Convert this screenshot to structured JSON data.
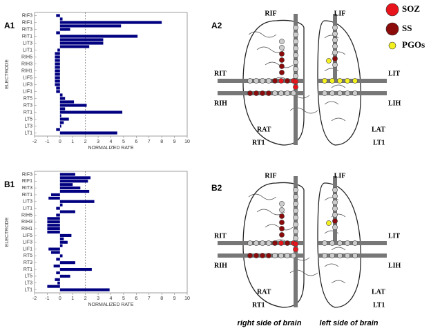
{
  "chart_data": [
    {
      "type": "bar",
      "orientation": "horizontal",
      "panel": "A1",
      "color": "#000080",
      "categories": [
        "RIF3",
        null,
        "RIF1",
        null,
        "RIT3",
        null,
        "RIT1",
        null,
        "LIT3",
        null,
        "LIT1",
        null,
        "RIH5",
        null,
        "RIH3",
        null,
        "RIH1",
        null,
        "LIF5",
        null,
        "LIF3",
        null,
        "LIF1",
        null,
        "RT5",
        null,
        "RT3",
        null,
        "RT1",
        null,
        "LT5",
        null,
        "LT3",
        null,
        "LT1"
      ],
      "values": [
        -0.3,
        0.2,
        8.0,
        4.8,
        0.8,
        -0.3,
        6.1,
        3.4,
        3.4,
        2.3,
        -0.2,
        -0.4,
        -0.4,
        -0.4,
        -0.4,
        -0.4,
        -0.4,
        -0.4,
        -0.4,
        -0.4,
        -0.4,
        -0.3,
        -0.3,
        0.2,
        0.4,
        1.1,
        2.1,
        0.4,
        4.9,
        0.1,
        0.7,
        0.3,
        0.1,
        -0.3,
        4.5
      ],
      "xlim": [
        -2,
        10
      ],
      "xticks": [
        -2,
        -1,
        0,
        1,
        2,
        3,
        4,
        5,
        6,
        7,
        8,
        9,
        10
      ],
      "xlabel": "NORMALIZED RATE",
      "ylabel": "ELECTRODE",
      "reference_x": 2
    },
    {
      "type": "bar",
      "orientation": "horizontal",
      "panel": "B1",
      "color": "#000080",
      "categories": [
        "RIF3",
        null,
        "RIF1",
        null,
        "RIT3",
        null,
        "RIT1",
        null,
        "LIT3",
        null,
        "LIT1",
        null,
        "RIH5",
        null,
        "RIH3",
        null,
        "RIH1",
        null,
        "LIF5",
        null,
        "LIF3",
        null,
        "LIF1",
        null,
        "RT5",
        null,
        "RT3",
        null,
        "RT1",
        null,
        "LT5",
        null,
        "LT3",
        null,
        "LT1"
      ],
      "values": [
        1.2,
        2.4,
        2.2,
        1.0,
        1.6,
        2.3,
        -0.7,
        -0.9,
        2.7,
        0.2,
        -0.3,
        1.2,
        -0.3,
        -1.0,
        -1.0,
        -1.0,
        -1.0,
        -1.0,
        0.9,
        0.3,
        0.6,
        0.2,
        -0.9,
        -0.7,
        0.2,
        -0.3,
        1.2,
        -0.5,
        2.5,
        -0.3,
        0.8,
        -0.4,
        -0.2,
        -1.0,
        3.9
      ],
      "xlim": [
        -2,
        10
      ],
      "xticks": [
        -2,
        -1,
        0,
        1,
        2,
        3,
        4,
        5,
        6,
        7,
        8,
        9,
        10
      ],
      "xlabel": "NORMALIZED RATE",
      "ylabel": "ELECTRODE",
      "reference_x": 2
    }
  ],
  "diagrams": {
    "legend": [
      {
        "label": "SOZ",
        "color": "#e8141b"
      },
      {
        "label": "SS",
        "color": "#8b0a0a"
      },
      {
        "label": "PGOs",
        "color": "#f4f020"
      }
    ],
    "panels": [
      {
        "label": "A2",
        "right_labels": [
          "RIF",
          "RIT",
          "RIH",
          "RAT",
          "RT1"
        ],
        "left_labels": [
          "LIF",
          "LIT",
          "LIH",
          "LAT",
          "LT1"
        ]
      },
      {
        "label": "B2",
        "right_labels": [
          "RIF",
          "RIT",
          "RIH",
          "RAT",
          "RT1"
        ],
        "left_labels": [
          "LIF",
          "LIT",
          "LIH",
          "LAT",
          "LT1"
        ]
      }
    ],
    "captions": [
      "right side of brain",
      "left side of brain"
    ]
  }
}
